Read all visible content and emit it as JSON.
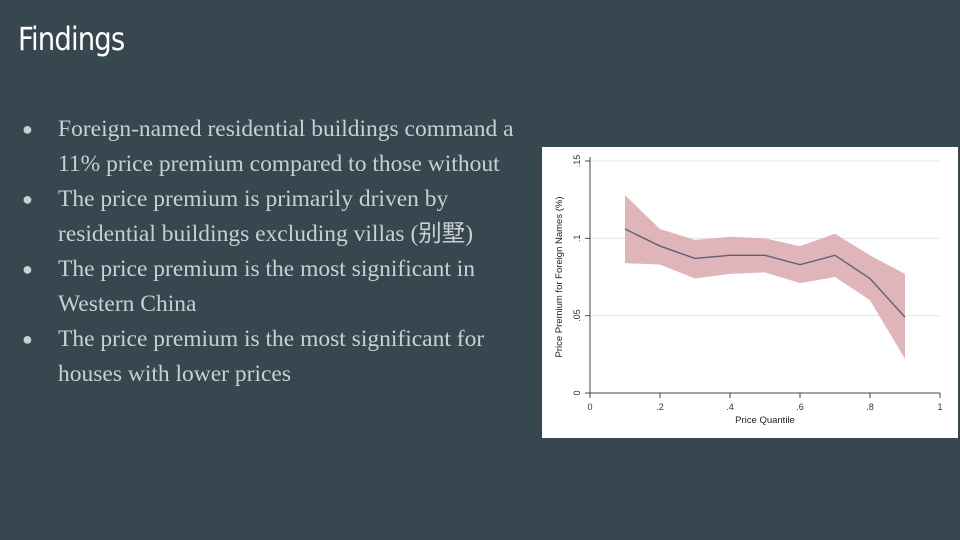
{
  "slide": {
    "title": "Findings",
    "bullets": [
      "Foreign-named residential buildings command a 11% price premium compared to those without",
      "The price premium is primarily driven by residential buildings excluding villas (别墅)",
      "The price premium is the most significant in Western China",
      "The price premium is the most significant for houses with lower prices"
    ],
    "bullet_glyph": "●"
  },
  "chart_data": {
    "type": "line",
    "xlabel": "Price Quantile",
    "ylabel": "Price Premium for Foreign Names (%)",
    "x_ticks": [
      "0",
      ".2",
      ".4",
      ".6",
      ".8",
      "1"
    ],
    "y_ticks": [
      "0",
      ".05",
      ".1",
      ".15"
    ],
    "xlim": [
      0,
      1
    ],
    "ylim": [
      0,
      0.15
    ],
    "grid": true,
    "legend": "none",
    "series": [
      {
        "x": [
          0.1,
          0.2,
          0.3,
          0.4,
          0.5,
          0.6,
          0.7,
          0.8,
          0.9
        ],
        "values": [
          0.106,
          0.095,
          0.087,
          0.089,
          0.089,
          0.083,
          0.089,
          0.074,
          0.049
        ],
        "ci_lower": [
          0.084,
          0.083,
          0.074,
          0.077,
          0.078,
          0.071,
          0.075,
          0.06,
          0.022
        ],
        "ci_upper": [
          0.128,
          0.106,
          0.099,
          0.101,
          0.1,
          0.095,
          0.103,
          0.089,
          0.077
        ],
        "line_color": "#5f5f72",
        "band_color": "#d9a8ae"
      }
    ]
  }
}
